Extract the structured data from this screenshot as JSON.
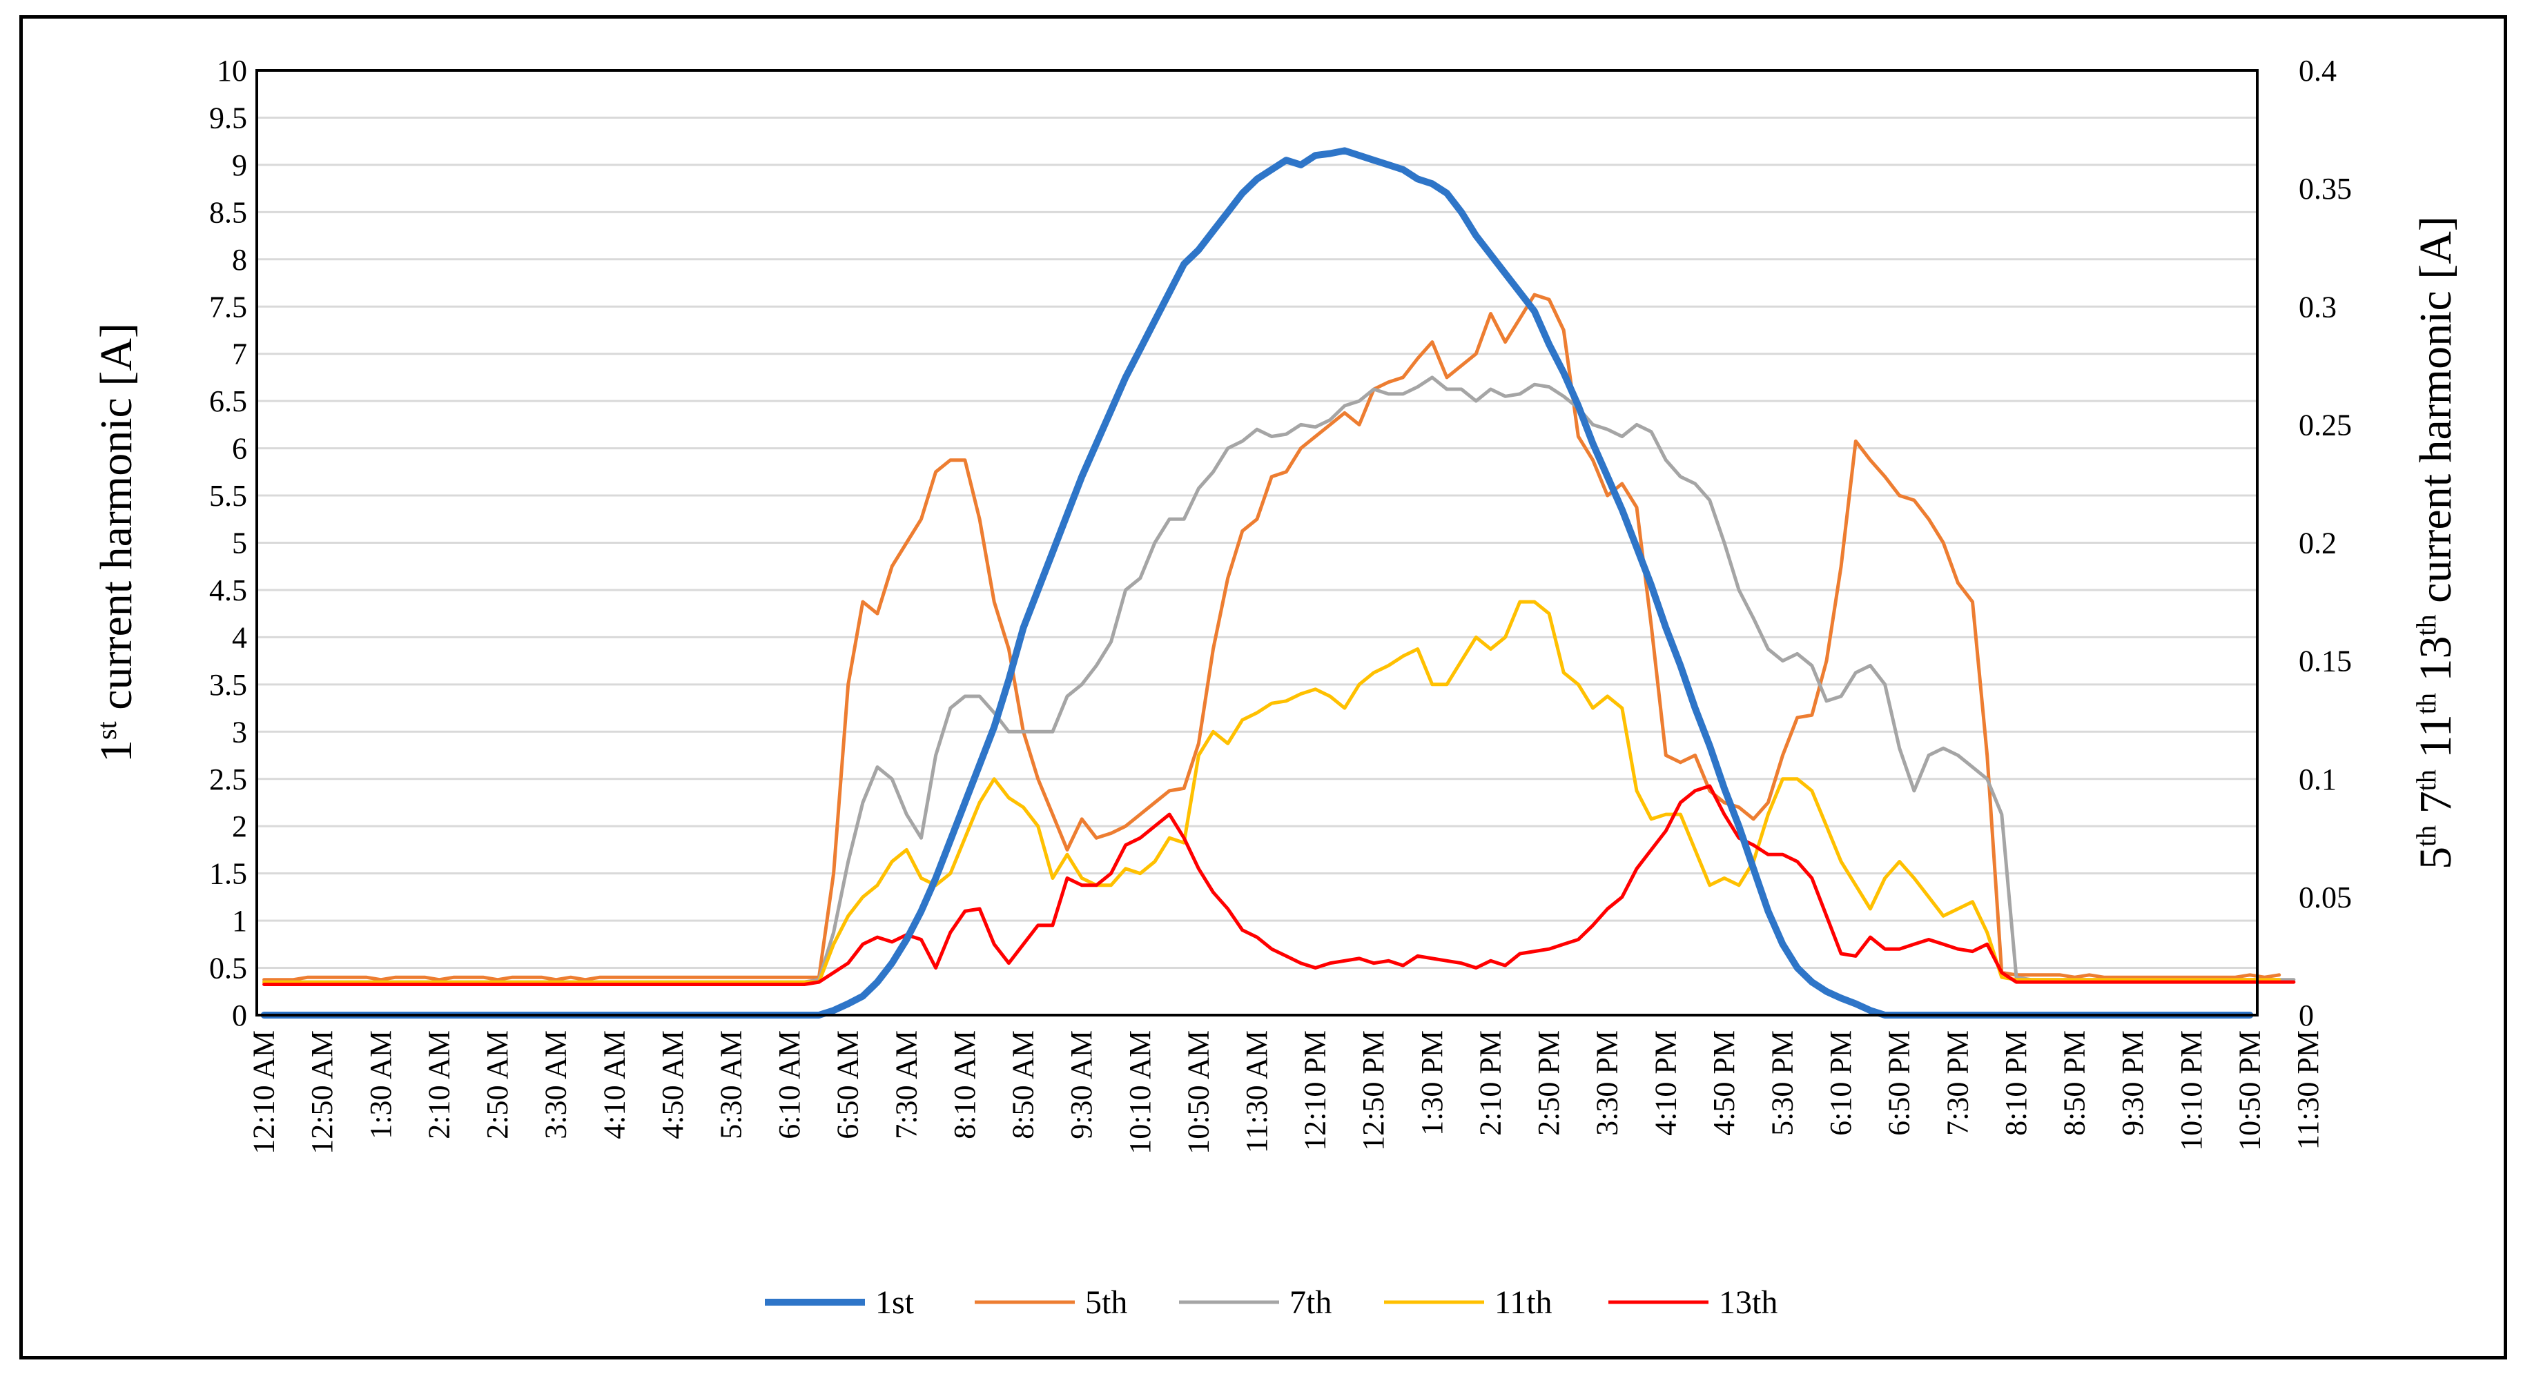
{
  "chart_data": {
    "type": "line",
    "title": "",
    "xlabel": "",
    "ylabel_left": "1st current harmonic [A]",
    "ylabel_left_parts": {
      "n": "1",
      "sup": "st",
      "rest": " current harmonic [A]"
    },
    "ylabel_right": "5th 7th 11th 13th current harmonic [A]",
    "ylabel_right_parts": [
      {
        "n": "5",
        "sup": "th"
      },
      {
        "n": " 7",
        "sup": "th"
      },
      {
        "n": " 11",
        "sup": "th"
      },
      {
        "n": " 13",
        "sup": "th"
      },
      {
        "n": " current harmonic [A]",
        "sup": ""
      }
    ],
    "ylim_left": [
      0,
      10
    ],
    "ylim_right": [
      0,
      0.4
    ],
    "left_ticks": [
      "0",
      "0.5",
      "1",
      "1.5",
      "2",
      "2.5",
      "3",
      "3.5",
      "4",
      "4.5",
      "5",
      "5.5",
      "6",
      "6.5",
      "7",
      "7.5",
      "8",
      "8.5",
      "9",
      "9.5",
      "10"
    ],
    "right_ticks": [
      "0",
      "0.05",
      "0.1",
      "0.15",
      "0.2",
      "0.25",
      "0.3",
      "0.35",
      "0.4"
    ],
    "x_tick_labels": [
      "12:10 AM",
      "12:50 AM",
      "1:30 AM",
      "2:10 AM",
      "2:50 AM",
      "3:30 AM",
      "4:10 AM",
      "4:50 AM",
      "5:30 AM",
      "6:10 AM",
      "6:50 AM",
      "7:30 AM",
      "8:10 AM",
      "8:50 AM",
      "9:30 AM",
      "10:10 AM",
      "10:50 AM",
      "11:30 AM",
      "12:10 PM",
      "12:50 PM",
      "1:30 PM",
      "2:10 PM",
      "2:50 PM",
      "3:30 PM",
      "4:10 PM",
      "4:50 PM",
      "5:30 PM",
      "6:10 PM",
      "6:50 PM",
      "7:30 PM",
      "8:10 PM",
      "8:50 PM",
      "9:30 PM",
      "10:10 PM",
      "10:50 PM",
      "11:30 PM"
    ],
    "x_interval_minutes": 10,
    "x_start": "12:10 AM",
    "legend_position": "bottom",
    "series": [
      {
        "name": "1st",
        "axis": "left",
        "color": "#2e75c8",
        "width": 10,
        "values": [
          0,
          0,
          0,
          0,
          0,
          0,
          0,
          0,
          0,
          0,
          0,
          0,
          0,
          0,
          0,
          0,
          0,
          0,
          0,
          0,
          0,
          0,
          0,
          0,
          0,
          0,
          0,
          0,
          0,
          0,
          0,
          0,
          0,
          0,
          0,
          0,
          0,
          0,
          0,
          0.05,
          0.12,
          0.2,
          0.35,
          0.55,
          0.8,
          1.1,
          1.45,
          1.85,
          2.25,
          2.65,
          3.05,
          3.55,
          4.1,
          4.5,
          4.9,
          5.3,
          5.7,
          6.05,
          6.4,
          6.75,
          7.05,
          7.35,
          7.65,
          7.95,
          8.1,
          8.3,
          8.5,
          8.7,
          8.85,
          8.95,
          9.05,
          9.0,
          9.1,
          9.12,
          9.15,
          9.1,
          9.05,
          9.0,
          8.95,
          8.85,
          8.8,
          8.7,
          8.5,
          8.25,
          8.05,
          7.85,
          7.65,
          7.45,
          7.1,
          6.8,
          6.45,
          6.05,
          5.7,
          5.35,
          4.95,
          4.55,
          4.1,
          3.7,
          3.25,
          2.85,
          2.4,
          2.0,
          1.55,
          1.1,
          0.75,
          0.5,
          0.35,
          0.25,
          0.18,
          0.12,
          0.05,
          0,
          0,
          0,
          0,
          0,
          0,
          0,
          0,
          0,
          0,
          0,
          0,
          0,
          0,
          0,
          0,
          0,
          0,
          0,
          0,
          0,
          0,
          0,
          0,
          0,
          0
        ]
      },
      {
        "name": "5th",
        "axis": "right",
        "color": "#ed7d31",
        "width": 5,
        "values": [
          0.015,
          0.015,
          0.015,
          0.016,
          0.016,
          0.016,
          0.016,
          0.016,
          0.015,
          0.016,
          0.016,
          0.016,
          0.015,
          0.016,
          0.016,
          0.016,
          0.015,
          0.016,
          0.016,
          0.016,
          0.015,
          0.016,
          0.015,
          0.016,
          0.016,
          0.016,
          0.016,
          0.016,
          0.016,
          0.016,
          0.016,
          0.016,
          0.016,
          0.016,
          0.016,
          0.016,
          0.016,
          0.016,
          0.016,
          0.06,
          0.14,
          0.175,
          0.17,
          0.19,
          0.2,
          0.21,
          0.23,
          0.235,
          0.235,
          0.21,
          0.175,
          0.155,
          0.12,
          0.1,
          0.085,
          0.07,
          0.083,
          0.075,
          0.077,
          0.08,
          0.085,
          0.09,
          0.095,
          0.096,
          0.115,
          0.155,
          0.185,
          0.205,
          0.21,
          0.228,
          0.23,
          0.24,
          0.245,
          0.25,
          0.255,
          0.25,
          0.265,
          0.268,
          0.27,
          0.278,
          0.285,
          0.27,
          0.275,
          0.28,
          0.297,
          0.285,
          0.295,
          0.305,
          0.303,
          0.29,
          0.245,
          0.235,
          0.22,
          0.225,
          0.215,
          0.165,
          0.11,
          0.107,
          0.11,
          0.095,
          0.09,
          0.088,
          0.083,
          0.09,
          0.11,
          0.126,
          0.127,
          0.15,
          0.19,
          0.243,
          0.235,
          0.228,
          0.22,
          0.218,
          0.21,
          0.2,
          0.183,
          0.175,
          0.11,
          0.018,
          0.017,
          0.017,
          0.017,
          0.017,
          0.016,
          0.017,
          0.016,
          0.016,
          0.016,
          0.016,
          0.016,
          0.016,
          0.016,
          0.016,
          0.016,
          0.016,
          0.017,
          0.016,
          0.017
        ]
      },
      {
        "name": "7th",
        "axis": "right",
        "color": "#a5a5a5",
        "width": 5,
        "values": [
          0.014,
          0.014,
          0.014,
          0.014,
          0.014,
          0.014,
          0.014,
          0.014,
          0.014,
          0.014,
          0.014,
          0.014,
          0.014,
          0.014,
          0.014,
          0.014,
          0.014,
          0.014,
          0.014,
          0.014,
          0.014,
          0.014,
          0.014,
          0.014,
          0.014,
          0.014,
          0.014,
          0.014,
          0.014,
          0.014,
          0.014,
          0.014,
          0.014,
          0.014,
          0.014,
          0.014,
          0.014,
          0.014,
          0.015,
          0.035,
          0.065,
          0.09,
          0.105,
          0.1,
          0.085,
          0.075,
          0.11,
          0.13,
          0.135,
          0.135,
          0.128,
          0.12,
          0.12,
          0.12,
          0.12,
          0.135,
          0.14,
          0.148,
          0.158,
          0.18,
          0.185,
          0.2,
          0.21,
          0.21,
          0.223,
          0.23,
          0.24,
          0.243,
          0.248,
          0.245,
          0.246,
          0.25,
          0.249,
          0.252,
          0.258,
          0.26,
          0.265,
          0.263,
          0.263,
          0.266,
          0.27,
          0.265,
          0.265,
          0.26,
          0.265,
          0.262,
          0.263,
          0.267,
          0.266,
          0.262,
          0.257,
          0.25,
          0.248,
          0.245,
          0.25,
          0.247,
          0.235,
          0.228,
          0.225,
          0.218,
          0.2,
          0.18,
          0.168,
          0.155,
          0.15,
          0.153,
          0.148,
          0.133,
          0.135,
          0.145,
          0.148,
          0.14,
          0.113,
          0.095,
          0.11,
          0.113,
          0.11,
          0.105,
          0.1,
          0.085,
          0.016,
          0.015,
          0.015,
          0.015,
          0.015,
          0.015,
          0.015,
          0.015,
          0.015,
          0.015,
          0.015,
          0.015,
          0.015,
          0.015,
          0.015,
          0.015,
          0.015,
          0.015,
          0.015,
          0.015
        ]
      },
      {
        "name": "11th",
        "axis": "right",
        "color": "#ffc000",
        "width": 5,
        "values": [
          0.014,
          0.014,
          0.014,
          0.014,
          0.014,
          0.014,
          0.014,
          0.014,
          0.014,
          0.014,
          0.014,
          0.014,
          0.014,
          0.014,
          0.014,
          0.014,
          0.014,
          0.014,
          0.014,
          0.014,
          0.014,
          0.014,
          0.014,
          0.014,
          0.014,
          0.014,
          0.014,
          0.014,
          0.014,
          0.014,
          0.014,
          0.014,
          0.014,
          0.014,
          0.014,
          0.014,
          0.014,
          0.014,
          0.014,
          0.03,
          0.042,
          0.05,
          0.055,
          0.065,
          0.07,
          0.058,
          0.055,
          0.06,
          0.075,
          0.09,
          0.1,
          0.092,
          0.088,
          0.08,
          0.058,
          0.068,
          0.058,
          0.055,
          0.055,
          0.062,
          0.06,
          0.065,
          0.075,
          0.073,
          0.11,
          0.12,
          0.115,
          0.125,
          0.128,
          0.132,
          0.133,
          0.136,
          0.138,
          0.135,
          0.13,
          0.14,
          0.145,
          0.148,
          0.152,
          0.155,
          0.14,
          0.14,
          0.15,
          0.16,
          0.155,
          0.16,
          0.175,
          0.175,
          0.17,
          0.145,
          0.14,
          0.13,
          0.135,
          0.13,
          0.095,
          0.083,
          0.085,
          0.085,
          0.07,
          0.055,
          0.058,
          0.055,
          0.065,
          0.085,
          0.1,
          0.1,
          0.095,
          0.08,
          0.065,
          0.055,
          0.045,
          0.058,
          0.065,
          0.058,
          0.05,
          0.042,
          0.045,
          0.048,
          0.035,
          0.016,
          0.015,
          0.015,
          0.015,
          0.015,
          0.015,
          0.015,
          0.015,
          0.015,
          0.015,
          0.015,
          0.015,
          0.015,
          0.015,
          0.015,
          0.015,
          0.015,
          0.015,
          0.015,
          0.015
        ]
      },
      {
        "name": "13th",
        "axis": "right",
        "color": "#ff0000",
        "width": 5,
        "values": [
          0.013,
          0.013,
          0.013,
          0.013,
          0.013,
          0.013,
          0.013,
          0.013,
          0.013,
          0.013,
          0.013,
          0.013,
          0.013,
          0.013,
          0.013,
          0.013,
          0.013,
          0.013,
          0.013,
          0.013,
          0.013,
          0.013,
          0.013,
          0.013,
          0.013,
          0.013,
          0.013,
          0.013,
          0.013,
          0.013,
          0.013,
          0.013,
          0.013,
          0.013,
          0.013,
          0.013,
          0.013,
          0.013,
          0.014,
          0.018,
          0.022,
          0.03,
          0.033,
          0.031,
          0.034,
          0.032,
          0.02,
          0.035,
          0.044,
          0.045,
          0.03,
          0.022,
          0.03,
          0.038,
          0.038,
          0.058,
          0.055,
          0.055,
          0.06,
          0.072,
          0.075,
          0.08,
          0.085,
          0.075,
          0.062,
          0.052,
          0.045,
          0.036,
          0.033,
          0.028,
          0.025,
          0.022,
          0.02,
          0.022,
          0.023,
          0.024,
          0.022,
          0.023,
          0.021,
          0.025,
          0.024,
          0.023,
          0.022,
          0.02,
          0.023,
          0.021,
          0.026,
          0.027,
          0.028,
          0.03,
          0.032,
          0.038,
          0.045,
          0.05,
          0.062,
          0.07,
          0.078,
          0.09,
          0.095,
          0.097,
          0.085,
          0.075,
          0.072,
          0.068,
          0.068,
          0.065,
          0.058,
          0.042,
          0.026,
          0.025,
          0.033,
          0.028,
          0.028,
          0.03,
          0.032,
          0.03,
          0.028,
          0.027,
          0.03,
          0.018,
          0.014,
          0.014,
          0.014,
          0.014,
          0.014,
          0.014,
          0.014,
          0.014,
          0.014,
          0.014,
          0.014,
          0.014,
          0.014,
          0.014,
          0.014,
          0.014,
          0.014,
          0.014,
          0.014,
          0.014
        ]
      }
    ]
  }
}
